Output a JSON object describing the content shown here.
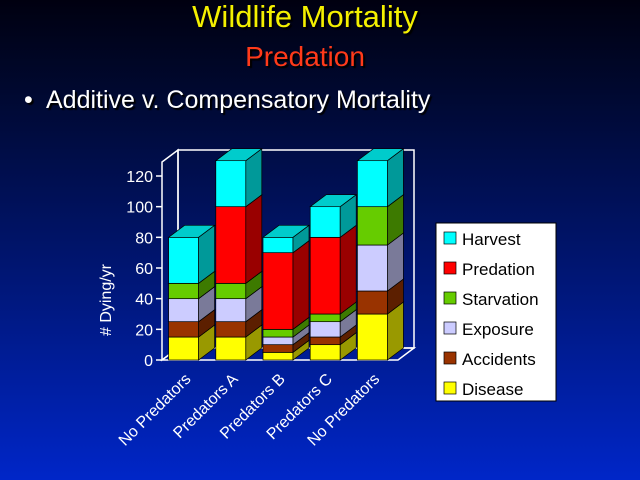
{
  "slide": {
    "title": "Wildlife Mortality",
    "subtitle": "Predation",
    "bullet": "Additive v. Compensatory Mortality"
  },
  "chart_data": {
    "type": "bar",
    "stacked": true,
    "style_3d": true,
    "categories": [
      "No Predators",
      "Predators A",
      "Predators B",
      "Predators C",
      "No Predators"
    ],
    "ylabel": "# Dying/yr",
    "ylim": [
      0,
      120
    ],
    "yticks": [
      0,
      20,
      40,
      60,
      80,
      100,
      120
    ],
    "grid": false,
    "legend": "right",
    "series": [
      {
        "name": "Disease",
        "color": "#ffff00",
        "values": [
          15,
          15,
          5,
          10,
          30
        ]
      },
      {
        "name": "Accidents",
        "color": "#993300",
        "values": [
          10,
          10,
          5,
          5,
          15
        ]
      },
      {
        "name": "Exposure",
        "color": "#ccccff",
        "values": [
          15,
          15,
          5,
          10,
          30
        ]
      },
      {
        "name": "Starvation",
        "color": "#66cc00",
        "values": [
          10,
          10,
          5,
          5,
          25
        ]
      },
      {
        "name": "Predation",
        "color": "#ff0000",
        "values": [
          0,
          50,
          50,
          50,
          0
        ]
      },
      {
        "name": "Harvest",
        "color": "#00ffff",
        "values": [
          30,
          30,
          10,
          20,
          30
        ]
      }
    ]
  }
}
